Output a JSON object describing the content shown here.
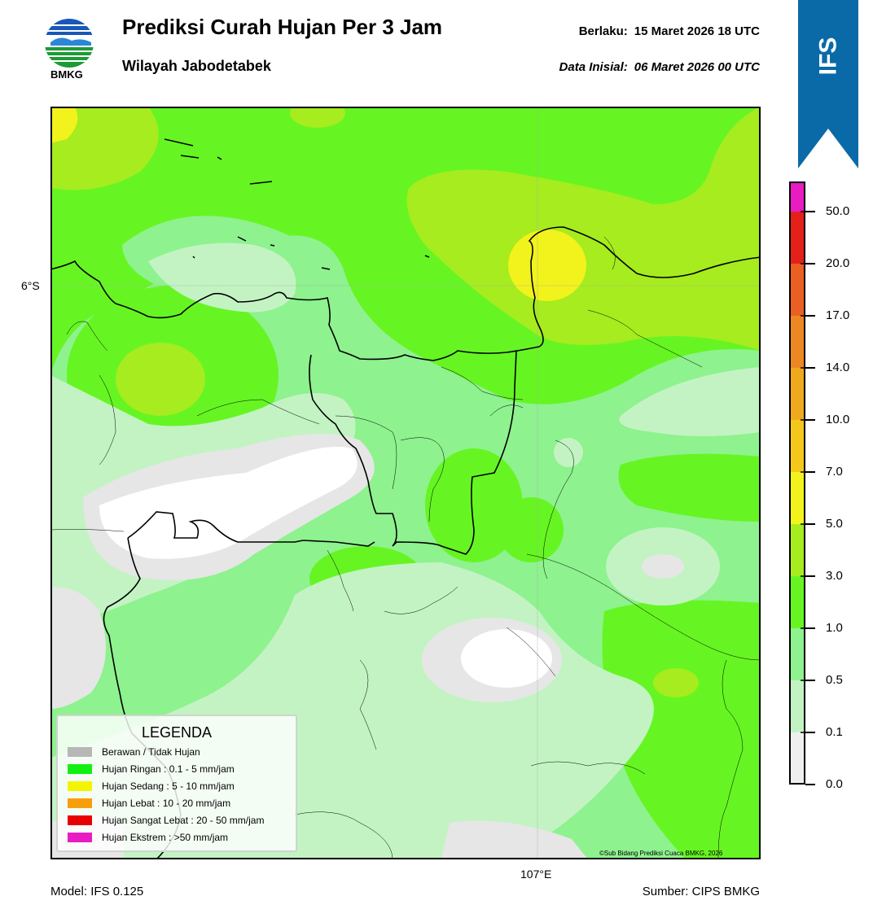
{
  "header": {
    "logo_text": "BMKG",
    "title": "Prediksi Curah Hujan Per 3 Jam",
    "subtitle": "Wilayah Jabodetabek",
    "valid_label": "Berlaku:",
    "valid_value": "15 Maret 2026 18 UTC",
    "init_label": "Data Inisial:",
    "init_value": "06 Maret 2026 00 UTC"
  },
  "ribbon": {
    "label": "IFS",
    "color": "#0a6aa8"
  },
  "map": {
    "lat_label": "6°S",
    "lon_label": "107°E",
    "copyright": "©Sub Bidang Prediksi Cuaca BMKG, 2026"
  },
  "legend": {
    "title": "LEGENDA",
    "items": [
      {
        "label": "Berawan / Tidak Hujan",
        "color": "#b7b7b7"
      },
      {
        "label": "Hujan Ringan : 0.1 - 5 mm/jam",
        "color": "#12f012"
      },
      {
        "label": "Hujan Sedang : 5 - 10 mm/jam",
        "color": "#f4f400"
      },
      {
        "label": "Hujan Lebat : 10 - 20 mm/jam",
        "color": "#f79f0a"
      },
      {
        "label": "Hujan Sangat Lebat : 20 - 50 mm/jam",
        "color": "#e80000"
      },
      {
        "label": "Hujan Ekstrem : >50 mm/jam",
        "color": "#e81cc2"
      }
    ]
  },
  "colorbar": {
    "ticks": [
      "0.0",
      "0.1",
      "0.5",
      "1.0",
      "3.0",
      "5.0",
      "7.0",
      "10.0",
      "14.0",
      "17.0",
      "20.0",
      "50.0"
    ],
    "colors": [
      "#efefef",
      "#c3f3c3",
      "#8ef28e",
      "#66f522",
      "#a6ec1e",
      "#f2f21c",
      "#f4c81a",
      "#f0a91c",
      "#ed8722",
      "#ea5f22",
      "#e4201a",
      "#e81cc2"
    ]
  },
  "footer": {
    "model": "Model: IFS 0.125",
    "source": "Sumber: CIPS BMKG"
  }
}
